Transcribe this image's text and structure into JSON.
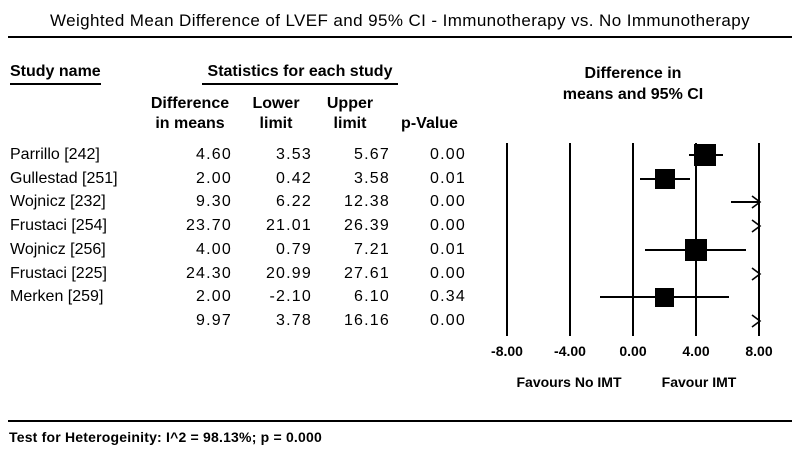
{
  "title": "Weighted Mean Difference of LVEF and 95% CI - Immunotherapy vs. No Immunotherapy",
  "header": {
    "study_col": "Study name",
    "stats_col": "Statistics for each study",
    "plot_col_line1": "Difference in",
    "plot_col_line2": "means and 95% CI",
    "sub_diff_line1": "Difference",
    "sub_diff_line2": "in means",
    "sub_lower_line1": "Lower",
    "sub_lower_line2": "limit",
    "sub_upper_line1": "Upper",
    "sub_upper_line2": "limit",
    "sub_pvalue": "p-Value"
  },
  "axis": {
    "favours_left": "Favours No IMT",
    "favours_right": "Favour IMT"
  },
  "footer": {
    "heterogeneity": "Test for Heterogeinity: I^2 = 98.13%; p = 0.000"
  },
  "colors": {
    "ink": "#000000",
    "background": "#ffffff"
  },
  "chart_data": {
    "type": "forest",
    "title": "Weighted Mean Difference of LVEF and 95% CI - Immunotherapy vs. No Immunotherapy",
    "xlim": [
      -8,
      8
    ],
    "x_ticks": [
      -8,
      -4,
      0,
      4,
      8
    ],
    "x_tick_labels": [
      "-8.00",
      "-4.00",
      "0.00",
      "4.00",
      "8.00"
    ],
    "axis_label_negative": "Favours No IMT",
    "axis_label_positive": "Favour IMT",
    "grid": true,
    "rows": [
      {
        "name": "Parrillo [242]",
        "mean": 4.6,
        "lower": 3.53,
        "upper": 5.67,
        "p": "0.00",
        "marker": "square",
        "marker_size": 22
      },
      {
        "name": "Gullestad [251]",
        "mean": 2.0,
        "lower": 0.42,
        "upper": 3.58,
        "p": "0.01",
        "marker": "square",
        "marker_size": 20
      },
      {
        "name": "Wojnicz [232]",
        "mean": 9.3,
        "lower": 6.22,
        "upper": 12.38,
        "p": "0.00",
        "marker": "line-offscale-right"
      },
      {
        "name": "Frustaci [254]",
        "mean": 23.7,
        "lower": 21.01,
        "upper": 26.39,
        "p": "0.00",
        "marker": "offscale-right"
      },
      {
        "name": "Wojnicz [256]",
        "mean": 4.0,
        "lower": 0.79,
        "upper": 7.21,
        "p": "0.01",
        "marker": "square",
        "marker_size": 22
      },
      {
        "name": "Frustaci [225]",
        "mean": 24.3,
        "lower": 20.99,
        "upper": 27.61,
        "p": "0.00",
        "marker": "offscale-right"
      },
      {
        "name": "Merken [259]",
        "mean": 2.0,
        "lower": -2.1,
        "upper": 6.1,
        "p": "0.34",
        "marker": "square",
        "marker_size": 19
      },
      {
        "name": "",
        "mean": 9.97,
        "lower": 3.78,
        "upper": 16.16,
        "p": "0.00",
        "marker": "offscale-right",
        "overall": true
      }
    ],
    "heterogeneity": "Test for Heterogeinity: I^2 = 98.13%; p = 0.000"
  }
}
